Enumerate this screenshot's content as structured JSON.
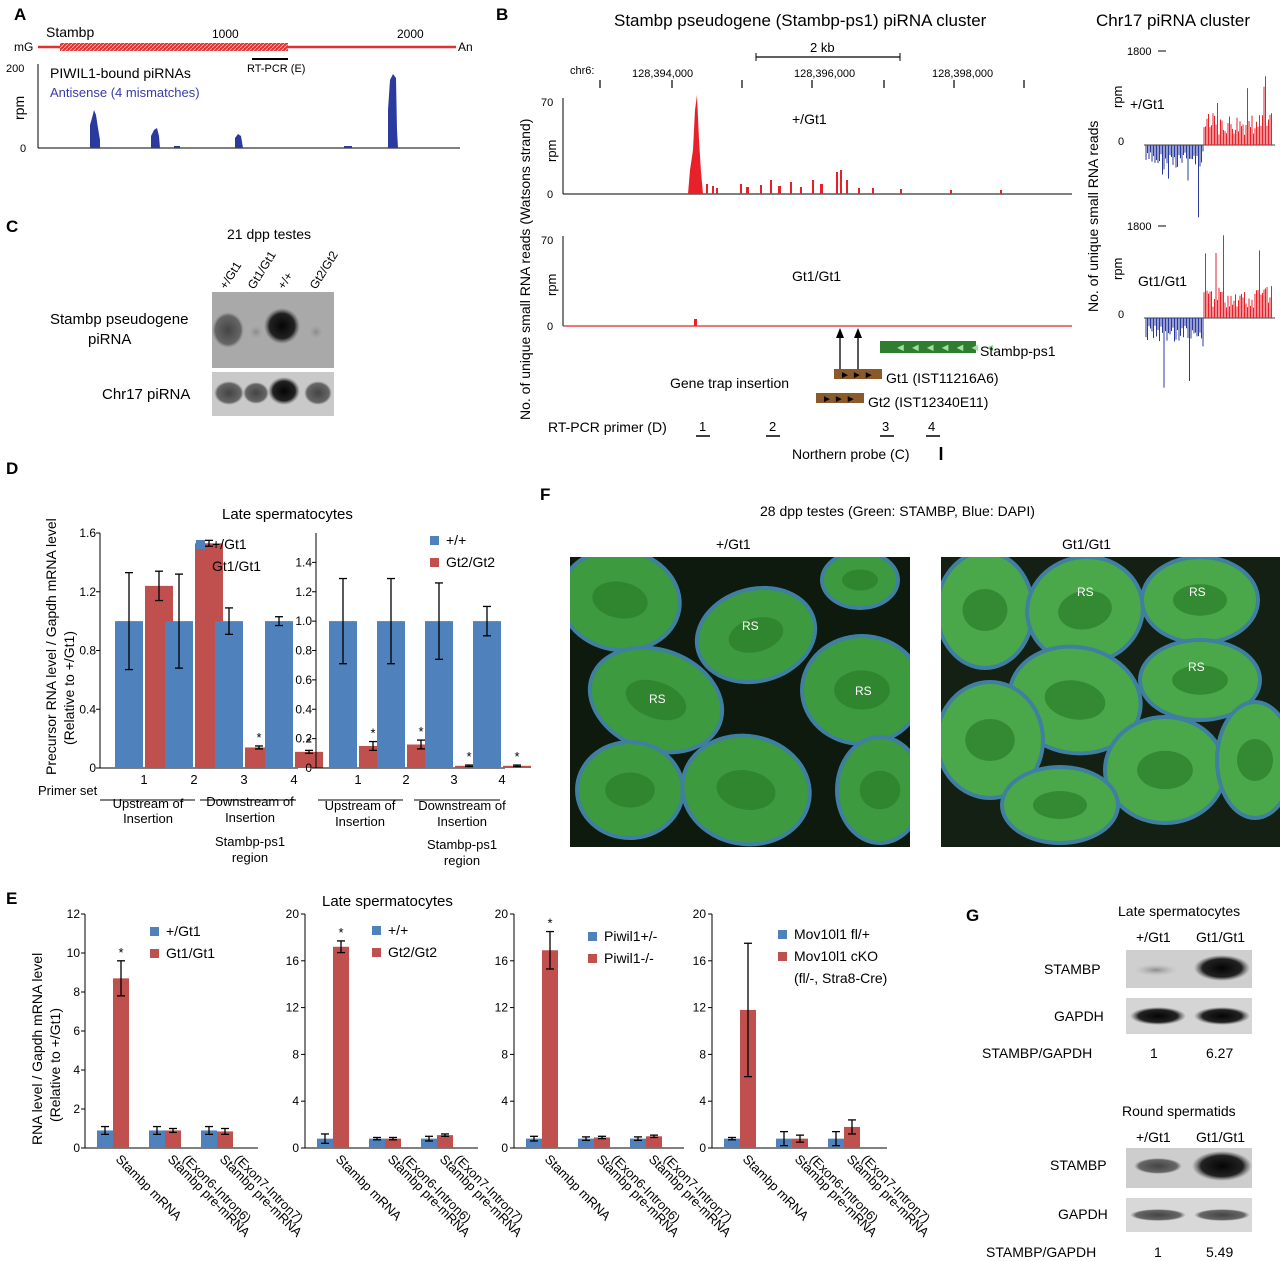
{
  "colors": {
    "blue": "#4f81bd",
    "red": "#c0504d",
    "trackRed": "#e8202a",
    "trackBlue": "#2b3a9e",
    "green": "#2f7d2f",
    "brown": "#8a5a2b"
  },
  "panelA": {
    "letter": "A",
    "gene": "Stambp",
    "mG": "mG",
    "An": "An",
    "tick1000": "1000",
    "tick2000": "2000",
    "rtpcr": "RT-PCR (E)",
    "ymax": "200",
    "ymin": "0",
    "ylabel": "rpm",
    "title": "PIWIL1-bound piRNAs",
    "subtitle": "Antisense (4 mismatches)"
  },
  "panelB": {
    "letter": "B",
    "title": "Stambp pseudogene (Stambp-ps1) piRNA cluster",
    "chr": "chr6:",
    "scale": "2 kb",
    "coords": [
      "128,394,000",
      "128,396,000",
      "128,398,000"
    ],
    "ylabel": "No. of unique small RNA reads (Watsons strand)",
    "rpm": "rpm",
    "ymax": "70",
    "ymin": "0",
    "track1": "+/Gt1",
    "track2": "Gt1/Gt1",
    "stambp_ps1": "Stambp-ps1",
    "gt1": "Gt1 (IST11216A6)",
    "gt2": "Gt2 (IST12340E11)",
    "gene_trap": "Gene trap insertion",
    "rtpcr_label": "RT-PCR primer (D)",
    "primers": [
      "1",
      "2",
      "3",
      "4"
    ],
    "northern": "Northern probe (C)",
    "chr17_title": "Chr17 piRNA cluster",
    "chr17_ymax": "1800",
    "chr17_ymin": "0",
    "chr17_ylabel": "No. of unique small RNA reads",
    "chr17_t1": "+/Gt1",
    "chr17_t2": "Gt1/Gt1"
  },
  "panelC": {
    "letter": "C",
    "title": "21 dpp testes",
    "lanes": [
      "+/Gt1",
      "Gt1/Gt1",
      "+/+",
      "Gt2/Gt2"
    ],
    "row1a": "Stambp pseudogene",
    "row1b": "piRNA",
    "row2": "Chr17 piRNA"
  },
  "panelD": {
    "letter": "D",
    "title": "Late spermatocytes",
    "ylabel1": "Precursor RNA level / Gapdh mRNA level",
    "ylabel2": "(Relative to +/Gt1)",
    "primer_set": "Primer set",
    "groups": [
      "Upstream of",
      "Insertion",
      "Downstream of",
      "Insertion",
      "Stambp-ps1",
      "region"
    ],
    "left": {
      "legend": [
        "+/Gt1",
        "Gt1/Gt1"
      ]
    },
    "right": {
      "legend": [
        "+/+",
        "Gt2/Gt2"
      ]
    }
  },
  "panelE": {
    "letter": "E",
    "title": "Late spermatocytes",
    "ylabel1": "RNA level / Gapdh mRNA level",
    "ylabel2": "(Relative to +/Gt1)",
    "xcats": [
      [
        "Stambp mRNA"
      ],
      [
        "Stambp pre-mRNA",
        "(Exon6-Intron6)"
      ],
      [
        "Stambp pre-mRNA",
        "(Exon7-Intron7)"
      ]
    ],
    "legends": [
      [
        "+/Gt1",
        "Gt1/Gt1"
      ],
      [
        "+/+",
        "Gt2/Gt2"
      ],
      [
        "Piwil1+/-",
        "Piwil1-/-"
      ],
      [
        "Mov10l1 fl/+",
        "Mov10l1 cKO",
        "(fl/-, Stra8-Cre)"
      ]
    ]
  },
  "panelF": {
    "letter": "F",
    "title": "28 dpp testes (Green: STAMBP, Blue: DAPI)",
    "left": "+/Gt1",
    "right": "Gt1/Gt1",
    "rs": "RS"
  },
  "panelG": {
    "letter": "G",
    "blocks": [
      {
        "title": "Late spermatocytes",
        "lanes": [
          "+/Gt1",
          "Gt1/Gt1"
        ],
        "ratio_label": "STAMBP/GAPDH",
        "ratios": [
          "1",
          "6.27"
        ]
      },
      {
        "title": "Round spermatids",
        "lanes": [
          "+/Gt1",
          "Gt1/Gt1"
        ],
        "ratio_label": "STAMBP/GAPDH",
        "ratios": [
          "1",
          "5.49"
        ]
      }
    ],
    "stambp": "STAMBP",
    "gapdh": "GAPDH"
  },
  "chart_data": [
    {
      "type": "bar",
      "panel": "D-left",
      "categories": [
        "1",
        "2",
        "3",
        "4"
      ],
      "ylim": [
        0,
        1.6
      ],
      "yticks": [
        "0",
        "0.4",
        "0.8",
        "1.2",
        "1.6"
      ],
      "series": [
        {
          "name": "+/Gt1",
          "values": [
            1.0,
            1.0,
            1.0,
            1.0
          ],
          "err": [
            0.33,
            0.32,
            0.09,
            0.03
          ]
        },
        {
          "name": "Gt1/Gt1",
          "values": [
            1.24,
            1.53,
            0.14,
            0.11
          ],
          "err": [
            0.1,
            0.02,
            0.01,
            0.01
          ]
        }
      ],
      "significant": [
        false,
        false,
        true,
        true
      ]
    },
    {
      "type": "bar",
      "panel": "D-right",
      "categories": [
        "1",
        "2",
        "3",
        "4"
      ],
      "ylim": [
        0,
        1.6
      ],
      "yticks": [
        "0",
        "0.2",
        "0.4",
        "0.6",
        "0.8",
        "1.0",
        "1.2",
        "1.4"
      ],
      "series": [
        {
          "name": "+/+",
          "values": [
            1.0,
            1.0,
            1.0,
            1.0
          ],
          "err": [
            0.29,
            0.29,
            0.26,
            0.1
          ]
        },
        {
          "name": "Gt2/Gt2",
          "values": [
            0.15,
            0.16,
            0.015,
            0.015
          ],
          "err": [
            0.03,
            0.03,
            0.005,
            0.005
          ]
        }
      ],
      "significant": [
        true,
        true,
        true,
        true
      ]
    },
    {
      "type": "bar",
      "panel": "E-1",
      "ylim": [
        0,
        12
      ],
      "yticks": [
        "0",
        "2",
        "4",
        "6",
        "8",
        "10",
        "12"
      ],
      "series": [
        {
          "name": "+/Gt1",
          "values": [
            0.9,
            0.9,
            0.9
          ],
          "err": [
            0.2,
            0.2,
            0.2
          ]
        },
        {
          "name": "Gt1/Gt1",
          "values": [
            8.7,
            0.9,
            0.85
          ],
          "err": [
            0.9,
            0.1,
            0.15
          ]
        }
      ],
      "significant": [
        true,
        false,
        false
      ]
    },
    {
      "type": "bar",
      "panel": "E-2",
      "ylim": [
        0,
        20
      ],
      "yticks": [
        "0",
        "4",
        "8",
        "12",
        "16",
        "20"
      ],
      "series": [
        {
          "name": "+/+",
          "values": [
            0.8,
            0.8,
            0.8
          ],
          "err": [
            0.4,
            0.1,
            0.2
          ]
        },
        {
          "name": "Gt2/Gt2",
          "values": [
            17.2,
            0.8,
            1.1
          ],
          "err": [
            0.5,
            0.1,
            0.1
          ]
        }
      ],
      "significant": [
        true,
        false,
        false
      ]
    },
    {
      "type": "bar",
      "panel": "E-3",
      "ylim": [
        0,
        20
      ],
      "yticks": [
        "0",
        "4",
        "8",
        "12",
        "16",
        "20"
      ],
      "series": [
        {
          "name": "Piwil1+/-",
          "values": [
            0.8,
            0.8,
            0.8
          ],
          "err": [
            0.2,
            0.15,
            0.15
          ]
        },
        {
          "name": "Piwil1-/-",
          "values": [
            16.9,
            0.9,
            1.0
          ],
          "err": [
            1.6,
            0.1,
            0.1
          ]
        }
      ],
      "significant": [
        true,
        false,
        false
      ]
    },
    {
      "type": "bar",
      "panel": "E-4",
      "ylim": [
        0,
        20
      ],
      "yticks": [
        "0",
        "4",
        "8",
        "12",
        "16",
        "20"
      ],
      "series": [
        {
          "name": "Mov10l1 fl/+",
          "values": [
            0.8,
            0.8,
            0.8
          ],
          "err": [
            0.1,
            0.6,
            0.6
          ]
        },
        {
          "name": "Mov10l1 cKO",
          "values": [
            11.8,
            0.8,
            1.8
          ],
          "err": [
            5.7,
            0.3,
            0.6
          ]
        }
      ],
      "significant": [
        false,
        false,
        false
      ]
    }
  ]
}
